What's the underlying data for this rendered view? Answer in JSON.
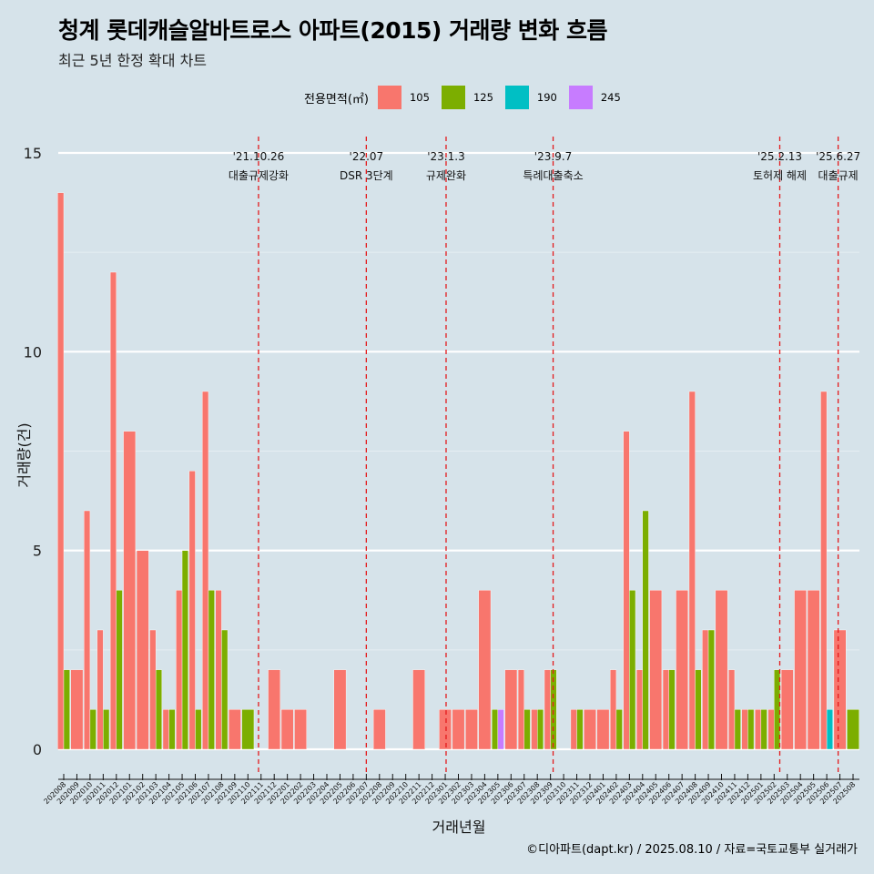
{
  "title": "청계 롯데캐슬알바트로스 아파트(2015) 거래량 변화 흐름",
  "subtitle": "최근 5년 한정 확대 차트",
  "caption": "©디아파트(dapt.kr) / 2025.08.10 / 자료=국토교통부 실거래가",
  "chart_data": {
    "type": "bar",
    "xlabel": "거래년월",
    "ylabel": "거래량(건)",
    "ylim": [
      -0.6,
      15.6
    ],
    "yticks": [
      0,
      5,
      10,
      15
    ],
    "grid": true,
    "legend": {
      "title": "전용면적(㎡)",
      "position": "top",
      "entries": [
        {
          "name": "105",
          "color": "#f8766d"
        },
        {
          "name": "125",
          "color": "#7cae00"
        },
        {
          "name": "190",
          "color": "#00bfc4"
        },
        {
          "name": "245",
          "color": "#c77cff"
        }
      ]
    },
    "categories": [
      "202008",
      "202009",
      "202010",
      "202011",
      "202012",
      "202101",
      "202102",
      "202103",
      "202104",
      "202105",
      "202106",
      "202107",
      "202108",
      "202109",
      "202110",
      "202111",
      "202112",
      "202201",
      "202202",
      "202203",
      "202204",
      "202205",
      "202206",
      "202207",
      "202208",
      "202209",
      "202210",
      "202211",
      "202212",
      "202301",
      "202302",
      "202303",
      "202304",
      "202305",
      "202306",
      "202307",
      "202308",
      "202309",
      "202310",
      "202311",
      "202312",
      "202401",
      "202402",
      "202403",
      "202404",
      "202405",
      "202406",
      "202407",
      "202408",
      "202409",
      "202410",
      "202411",
      "202412",
      "202501",
      "202502",
      "202503",
      "202504",
      "202505",
      "202506",
      "202507",
      "202508"
    ],
    "series": [
      {
        "name": "105",
        "values": [
          14,
          2,
          6,
          3,
          12,
          8,
          5,
          3,
          1,
          4,
          7,
          9,
          4,
          1,
          0,
          0,
          2,
          1,
          1,
          0,
          0,
          2,
          0,
          0,
          1,
          0,
          0,
          2,
          0,
          1,
          1,
          1,
          4,
          0,
          2,
          2,
          1,
          2,
          0,
          1,
          1,
          1,
          2,
          8,
          2,
          4,
          2,
          4,
          9,
          3,
          4,
          2,
          1,
          1,
          1,
          2,
          4,
          4,
          9,
          3,
          0
        ]
      },
      {
        "name": "125",
        "values": [
          2,
          0,
          1,
          1,
          4,
          0,
          0,
          2,
          1,
          5,
          1,
          4,
          3,
          0,
          1,
          0,
          0,
          0,
          0,
          0,
          0,
          0,
          0,
          0,
          0,
          0,
          0,
          0,
          0,
          0,
          0,
          0,
          0,
          1,
          0,
          1,
          1,
          2,
          0,
          1,
          0,
          0,
          1,
          4,
          6,
          0,
          2,
          0,
          2,
          3,
          0,
          1,
          1,
          1,
          2,
          0,
          0,
          0,
          0,
          0,
          1
        ]
      },
      {
        "name": "190",
        "values": [
          0,
          0,
          0,
          0,
          0,
          0,
          0,
          0,
          0,
          0,
          0,
          0,
          0,
          0,
          0,
          0,
          0,
          0,
          0,
          0,
          0,
          0,
          0,
          0,
          0,
          0,
          0,
          0,
          0,
          0,
          0,
          0,
          0,
          0,
          0,
          0,
          0,
          0,
          0,
          0,
          0,
          0,
          0,
          0,
          0,
          0,
          0,
          0,
          0,
          0,
          0,
          0,
          0,
          0,
          0,
          0,
          0,
          0,
          1,
          0,
          0
        ]
      },
      {
        "name": "245",
        "values": [
          0,
          0,
          0,
          0,
          0,
          0,
          0,
          0,
          0,
          0,
          0,
          0,
          0,
          0,
          0,
          0,
          0,
          0,
          0,
          0,
          0,
          0,
          0,
          0,
          0,
          0,
          0,
          0,
          0,
          0,
          0,
          0,
          0,
          1,
          0,
          0,
          0,
          0,
          0,
          0,
          0,
          0,
          0,
          0,
          0,
          0,
          0,
          0,
          0,
          0,
          0,
          0,
          0,
          0,
          0,
          0,
          0,
          0,
          0,
          0,
          0
        ]
      }
    ],
    "annotations": [
      {
        "x": "2021-10-26",
        "line1": "'21.10.26",
        "line2": "대출규제강화"
      },
      {
        "x": "2022-07-01",
        "line1": "'22.07",
        "line2": "DSR 3단계"
      },
      {
        "x": "2023-01-03",
        "line1": "'23.1.3",
        "line2": "규제완화"
      },
      {
        "x": "2023-09-07",
        "line1": "'23.9.7",
        "line2": "특례대출축소"
      },
      {
        "x": "2025-02-13",
        "line1": "'25.2.13",
        "line2": "토허제 해제"
      },
      {
        "x": "2025-06-27",
        "line1": "'25.6.27",
        "line2": "대출규제"
      }
    ]
  }
}
